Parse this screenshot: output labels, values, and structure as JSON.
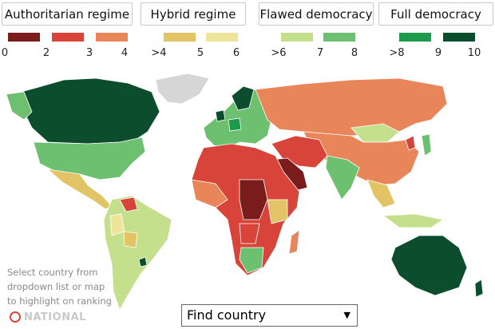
{
  "regimes": [
    "Authoritarian regime",
    "Hybrid regime",
    "Flawed democracy",
    "Full democracy"
  ],
  "legend_colors": [
    "#7b1c1c",
    "#d9443a",
    "#e8865a",
    "#e2c466",
    "#ede59a",
    "#c5e08c",
    "#6cc070",
    "#1e9a4a",
    "#0b4d2c"
  ],
  "scale_labels": [
    "0",
    "2",
    "3",
    "4",
    ">4",
    "5",
    "6",
    ">6",
    "7",
    "8",
    ">8",
    "9",
    "10"
  ],
  "note": [
    "Select country from",
    "dropdown list or map",
    "to highlight on ranking"
  ],
  "dropdown": {
    "label": "Find country",
    "arrow": "▼"
  },
  "watermark": "NATIONAL"
}
